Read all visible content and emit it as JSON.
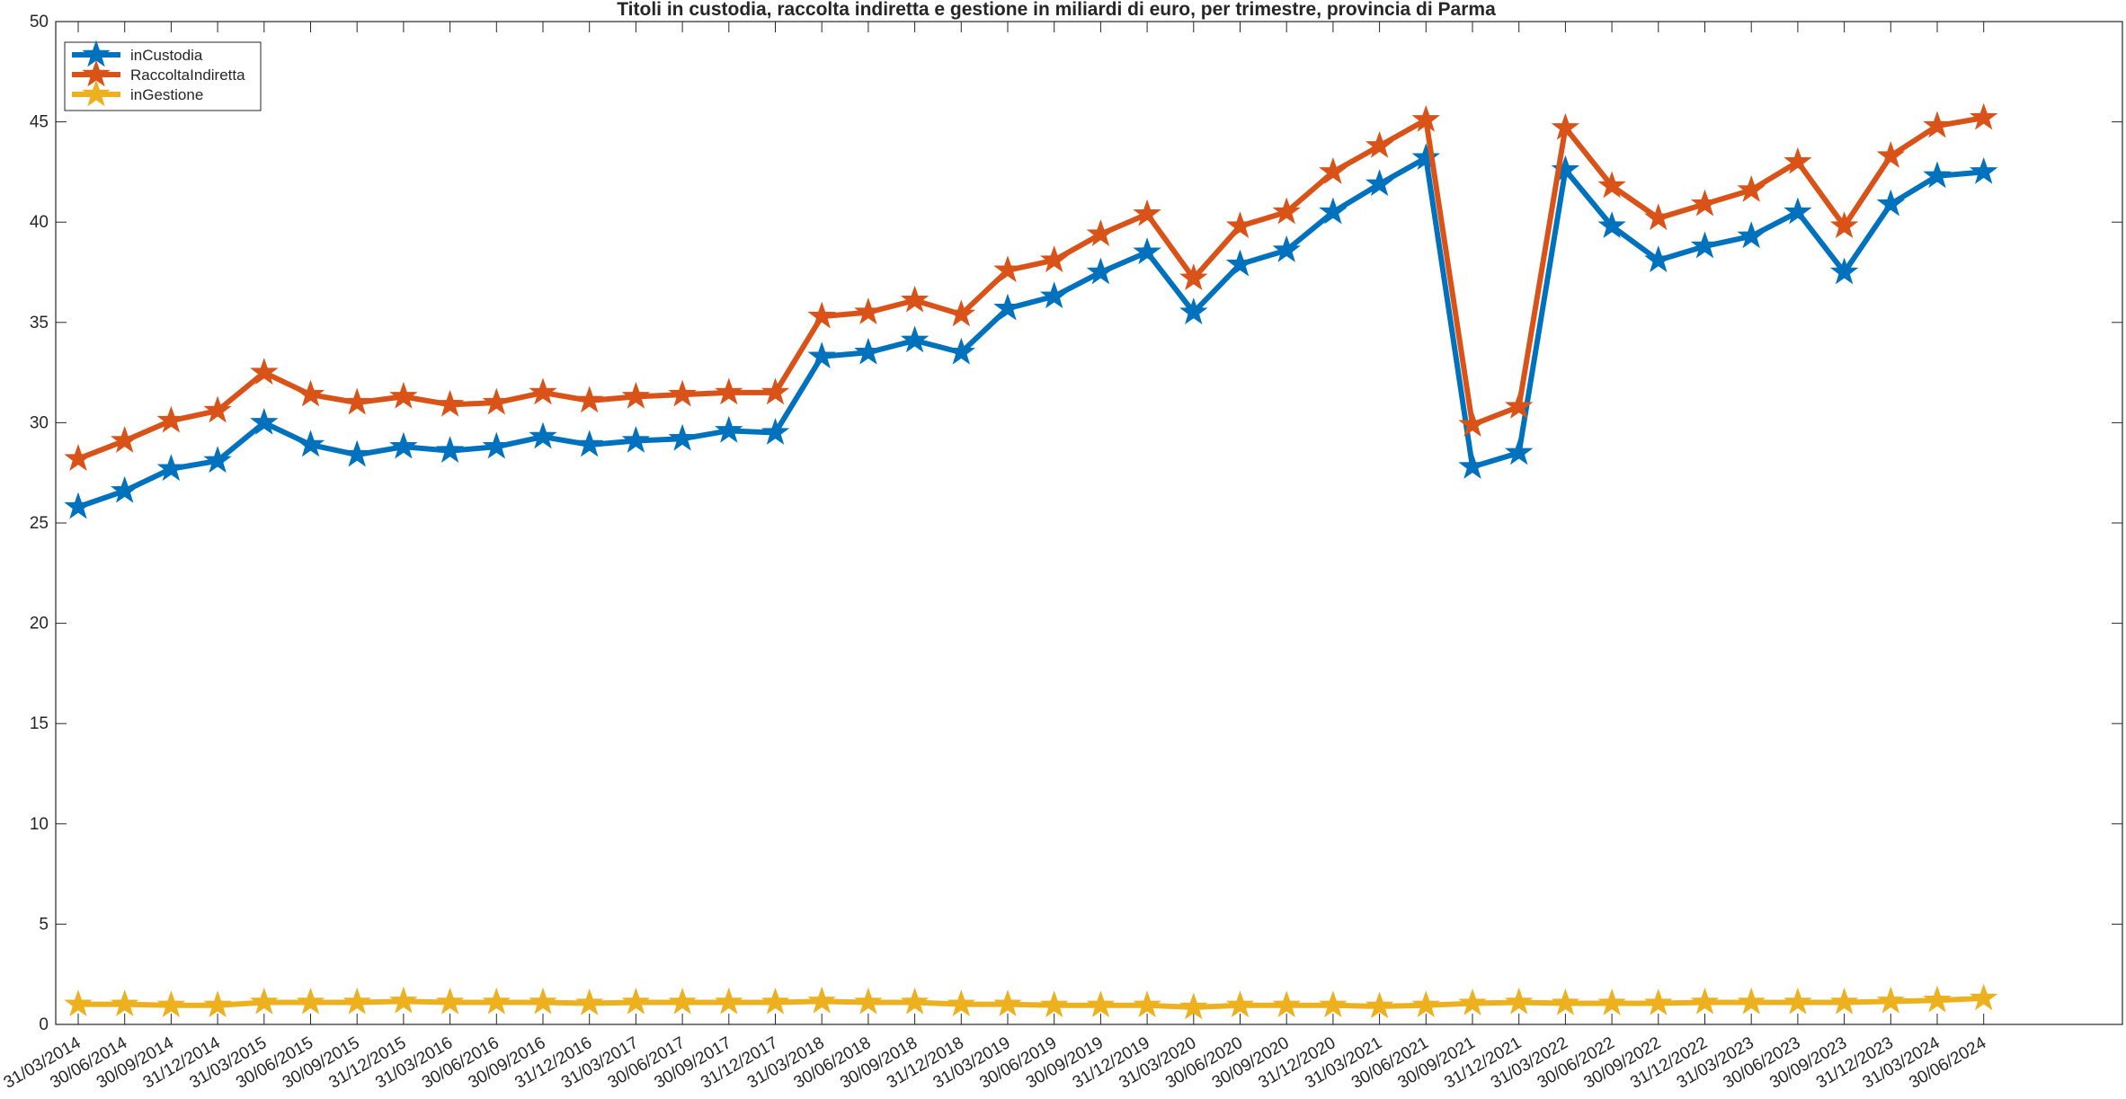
{
  "chart_data": {
    "type": "line",
    "title": "Titoli in custodia, raccolta indiretta e gestione in miliardi di euro, per trimestre, provincia di Parma",
    "xlabel": "",
    "ylabel": "",
    "ylim": [
      0,
      50
    ],
    "yticks": [
      0,
      5,
      10,
      15,
      20,
      25,
      30,
      35,
      40,
      45,
      50
    ],
    "grid": false,
    "legend_position": "top-left",
    "categories": [
      "31/03/2014",
      "30/06/2014",
      "30/09/2014",
      "31/12/2014",
      "31/03/2015",
      "30/06/2015",
      "30/09/2015",
      "31/12/2015",
      "31/03/2016",
      "30/06/2016",
      "30/09/2016",
      "31/12/2016",
      "31/03/2017",
      "30/06/2017",
      "30/09/2017",
      "31/12/2017",
      "31/03/2018",
      "30/06/2018",
      "30/09/2018",
      "31/12/2018",
      "31/03/2019",
      "30/06/2019",
      "30/09/2019",
      "31/12/2019",
      "31/03/2020",
      "30/06/2020",
      "30/09/2020",
      "31/12/2020",
      "31/03/2021",
      "30/06/2021",
      "30/09/2021",
      "31/12/2021",
      "31/03/2022",
      "30/06/2022",
      "30/09/2022",
      "31/12/2022",
      "31/03/2023",
      "30/06/2023",
      "30/09/2023",
      "31/12/2023",
      "31/03/2024",
      "30/06/2024"
    ],
    "series": [
      {
        "name": "inCustodia",
        "color": "#0072BD",
        "values": [
          25.8,
          26.6,
          27.7,
          28.1,
          30.0,
          28.9,
          28.4,
          28.8,
          28.6,
          28.8,
          29.3,
          28.9,
          29.1,
          29.2,
          29.6,
          29.5,
          33.3,
          33.5,
          34.1,
          33.5,
          35.7,
          36.3,
          37.5,
          38.5,
          35.5,
          37.9,
          38.6,
          40.5,
          41.9,
          43.2,
          27.8,
          28.5,
          42.6,
          39.8,
          38.1,
          38.8,
          39.3,
          40.5,
          37.5,
          40.9,
          42.3,
          42.5
        ]
      },
      {
        "name": "RaccoltaIndiretta",
        "color": "#D95319",
        "values": [
          28.2,
          29.1,
          30.1,
          30.6,
          32.5,
          31.4,
          31.0,
          31.3,
          30.9,
          31.0,
          31.5,
          31.1,
          31.3,
          31.4,
          31.5,
          31.5,
          35.3,
          35.5,
          36.1,
          35.4,
          37.6,
          38.1,
          39.4,
          40.4,
          37.2,
          39.8,
          40.5,
          42.5,
          43.8,
          45.1,
          29.9,
          30.8,
          44.7,
          41.8,
          40.2,
          40.9,
          41.6,
          43.0,
          39.8,
          43.3,
          44.8,
          45.2
        ]
      },
      {
        "name": "inGestione",
        "color": "#EDB120",
        "values": [
          1.0,
          1.0,
          0.95,
          0.95,
          1.1,
          1.1,
          1.1,
          1.15,
          1.1,
          1.1,
          1.1,
          1.05,
          1.1,
          1.1,
          1.1,
          1.1,
          1.15,
          1.1,
          1.1,
          1.0,
          1.0,
          0.95,
          0.95,
          0.95,
          0.85,
          0.95,
          0.95,
          0.95,
          0.9,
          0.95,
          1.05,
          1.1,
          1.05,
          1.05,
          1.05,
          1.1,
          1.1,
          1.1,
          1.1,
          1.15,
          1.2,
          1.3
        ]
      }
    ]
  }
}
